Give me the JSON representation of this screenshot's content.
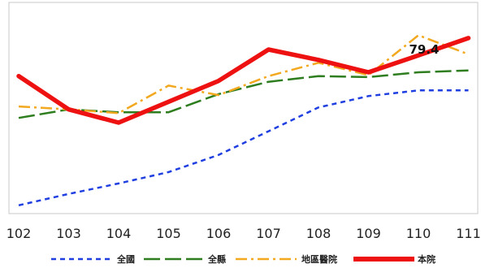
{
  "chart_data": {
    "type": "line",
    "title": "",
    "xlabel": "",
    "ylabel": "",
    "x": [
      "102",
      "103",
      "104",
      "105",
      "106",
      "107",
      "108",
      "109",
      "110",
      "111"
    ],
    "ylim": [
      0,
      100
    ],
    "grid": false,
    "legend_position": "bottom",
    "series": [
      {
        "name": "全國",
        "color": "#1f3fe0",
        "style": "dashed",
        "values": [
          0.5,
          6.5,
          12.0,
          18.0,
          27.0,
          39.5,
          52.0,
          58.0,
          61.0,
          61.0
        ]
      },
      {
        "name": "全縣",
        "color": "#2e7d1f",
        "style": "long-dash",
        "values": [
          46.5,
          51.0,
          49.5,
          49.5,
          59.0,
          65.5,
          68.5,
          68.0,
          70.5,
          71.5
        ]
      },
      {
        "name": "地區醫院",
        "color": "#f2a81f",
        "style": "dash-dot",
        "values": [
          52.5,
          51.0,
          49.0,
          63.5,
          58.5,
          68.5,
          75.5,
          69.0,
          90.0,
          80.0
        ]
      },
      {
        "name": "本院",
        "color": "#ee1111",
        "style": "solid-thick",
        "values": [
          68.5,
          51.0,
          44.0,
          55.0,
          66.0,
          82.5,
          77.0,
          70.5,
          79.4,
          88.5
        ]
      }
    ],
    "annotations": [
      {
        "series": "本院",
        "x": "110",
        "text": "79.4"
      }
    ]
  }
}
